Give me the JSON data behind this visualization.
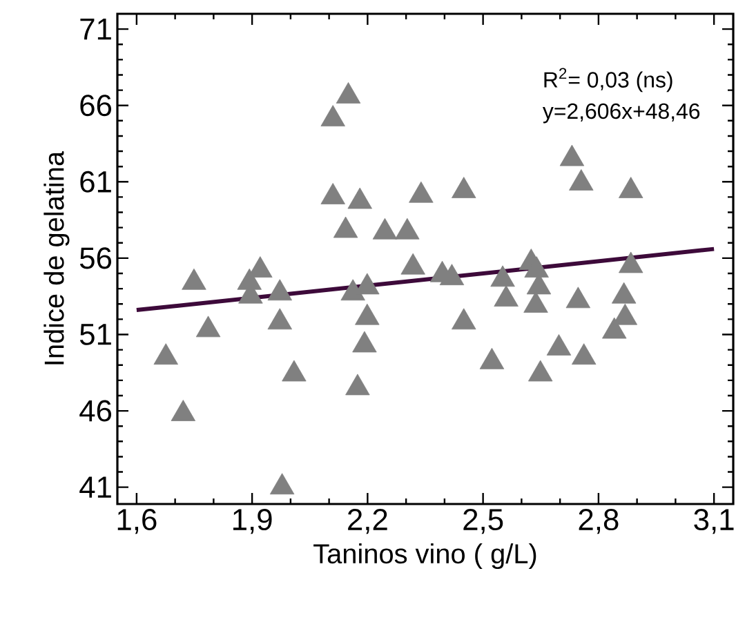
{
  "chart_data": {
    "type": "scatter",
    "xlabel": "Taninos vino ( g/L)",
    "ylabel": "Indice de  gelatina",
    "annotations": [
      "R$^{2}$= 0,03 (ns)",
      "y=2,606x+48,46"
    ],
    "xlim": [
      1.55,
      3.15
    ],
    "ylim": [
      39.9,
      72
    ],
    "xticks": [
      {
        "value": 1.6,
        "label": "1,6"
      },
      {
        "value": 1.9,
        "label": "1,9"
      },
      {
        "value": 2.2,
        "label": "2,2"
      },
      {
        "value": 2.5,
        "label": "2,5"
      },
      {
        "value": 2.8,
        "label": "2,8"
      },
      {
        "value": 3.1,
        "label": "3,1"
      }
    ],
    "yticks": [
      41,
      46,
      51,
      56,
      61,
      66,
      71
    ],
    "grid": false,
    "series": [
      {
        "color": "#808080",
        "marker": "triangle",
        "x": [
          1.676,
          1.721,
          1.749,
          1.786,
          1.893,
          1.896,
          1.921,
          1.972,
          1.972,
          1.978,
          2.009,
          2.11,
          2.15,
          2.11,
          2.18,
          2.143,
          2.162,
          2.199,
          2.199,
          2.192,
          2.174,
          2.245,
          2.303,
          2.318,
          2.339,
          2.394,
          2.419,
          2.45,
          2.45,
          2.523,
          2.551,
          2.56,
          2.625,
          2.639,
          2.645,
          2.637,
          2.649,
          2.697,
          2.731,
          2.755,
          2.762,
          2.747,
          2.841,
          2.866,
          2.869,
          2.884,
          2.884
        ],
        "values": [
          49.5,
          45.8,
          54.4,
          51.3,
          54.4,
          53.5,
          55.2,
          53.7,
          51.8,
          41,
          48.4,
          65.1,
          66.6,
          60.0,
          59.7,
          57.8,
          53.7,
          54.1,
          52.1,
          50.3,
          47.5,
          57.7,
          57.7,
          55.4,
          60.1,
          54.9,
          54.7,
          60.4,
          51.8,
          49.2,
          54.6,
          53.3,
          55.7,
          55.2,
          54.1,
          52.9,
          48.4,
          50.1,
          62.5,
          60.9,
          49.5,
          53.2,
          51.2,
          53.5,
          52.1,
          60.4,
          55.5
        ]
      },
      {
        "type": "line",
        "color": "#3d0a3a",
        "marker": "none",
        "line_style": "solid",
        "x": [
          1.6,
          3.1
        ],
        "values": [
          52.6,
          56.6
        ]
      }
    ]
  }
}
